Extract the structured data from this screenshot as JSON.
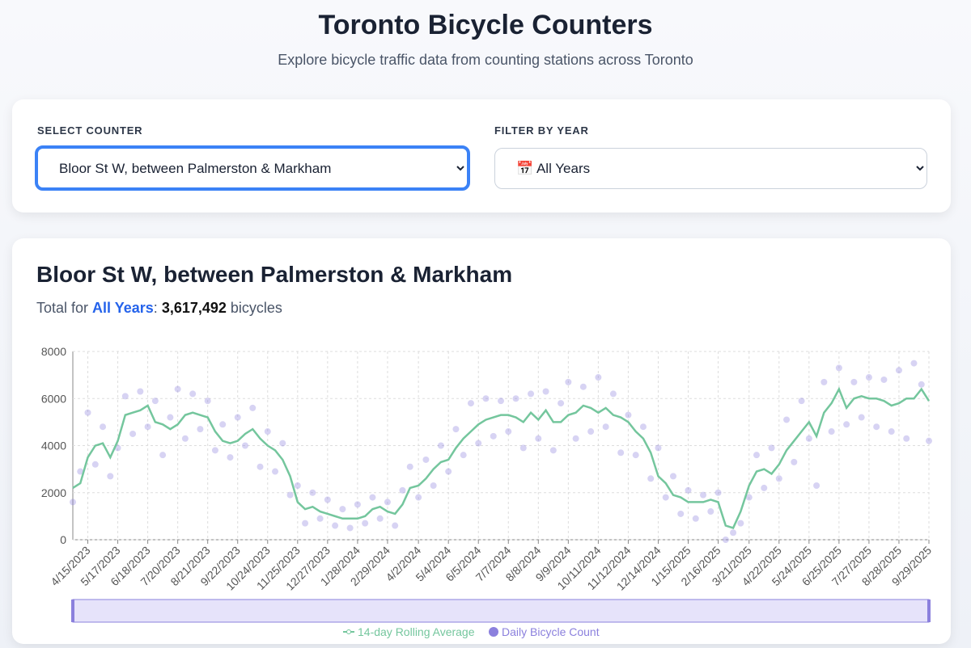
{
  "header": {
    "title": "Toronto Bicycle Counters",
    "subtitle": "Explore bicycle traffic data from counting stations across Toronto"
  },
  "controls": {
    "counter_label": "SELECT COUNTER",
    "counter_value": "Bloor St W, between Palmerston & Markham",
    "year_label": "FILTER BY YEAR",
    "year_value": "📅 All Years"
  },
  "summary": {
    "title": "Bloor St W, between Palmerston & Markham",
    "prefix": "Total for",
    "year": "All Years",
    "separator": ":",
    "count": "3,617,492",
    "suffix": "bicycles"
  },
  "chart_data": {
    "type": "line",
    "grid": true,
    "legend": "bottom",
    "x": [
      "2023-03-30",
      "2023-04-07",
      "2023-04-15",
      "2023-04-23",
      "2023-05-01",
      "2023-05-09",
      "2023-05-17",
      "2023-05-25",
      "2023-06-02",
      "2023-06-10",
      "2023-06-18",
      "2023-06-26",
      "2023-07-04",
      "2023-07-12",
      "2023-07-20",
      "2023-07-28",
      "2023-08-05",
      "2023-08-13",
      "2023-08-21",
      "2023-08-29",
      "2023-09-06",
      "2023-09-14",
      "2023-09-22",
      "2023-09-30",
      "2023-10-08",
      "2023-10-16",
      "2023-10-24",
      "2023-11-01",
      "2023-11-09",
      "2023-11-17",
      "2023-11-25",
      "2023-12-03",
      "2023-12-11",
      "2023-12-19",
      "2023-12-27",
      "2024-01-04",
      "2024-01-12",
      "2024-01-20",
      "2024-01-28",
      "2024-02-05",
      "2024-02-13",
      "2024-02-21",
      "2024-02-29",
      "2024-03-08",
      "2024-03-16",
      "2024-03-24",
      "2024-04-02",
      "2024-04-10",
      "2024-04-18",
      "2024-04-26",
      "2024-05-04",
      "2024-05-12",
      "2024-05-20",
      "2024-05-28",
      "2024-06-05",
      "2024-06-13",
      "2024-06-21",
      "2024-06-29",
      "2024-07-07",
      "2024-07-15",
      "2024-07-23",
      "2024-07-31",
      "2024-08-08",
      "2024-08-16",
      "2024-08-24",
      "2024-09-01",
      "2024-09-09",
      "2024-09-17",
      "2024-09-25",
      "2024-10-03",
      "2024-10-11",
      "2024-10-19",
      "2024-10-27",
      "2024-11-04",
      "2024-11-12",
      "2024-11-20",
      "2024-11-28",
      "2024-12-06",
      "2024-12-14",
      "2024-12-22",
      "2024-12-30",
      "2025-01-07",
      "2025-01-15",
      "2025-01-23",
      "2025-01-31",
      "2025-02-08",
      "2025-02-16",
      "2025-02-24",
      "2025-03-04",
      "2025-03-12",
      "2025-03-21",
      "2025-03-29",
      "2025-04-06",
      "2025-04-14",
      "2025-04-22",
      "2025-04-30",
      "2025-05-08",
      "2025-05-16",
      "2025-05-24",
      "2025-06-01",
      "2025-06-09",
      "2025-06-17",
      "2025-06-25",
      "2025-07-03",
      "2025-07-11",
      "2025-07-19",
      "2025-07-27",
      "2025-08-04",
      "2025-08-12",
      "2025-08-20",
      "2025-08-28",
      "2025-09-05",
      "2025-09-13",
      "2025-09-21",
      "2025-09-29"
    ],
    "series": [
      {
        "name": "14-day Rolling Average",
        "color": "#74c69d",
        "values": [
          2200,
          2400,
          3500,
          4000,
          4100,
          3500,
          4200,
          5300,
          5400,
          5500,
          5700,
          5000,
          4900,
          4700,
          4900,
          5300,
          5400,
          5300,
          5200,
          4600,
          4200,
          4100,
          4200,
          4500,
          4700,
          4300,
          4000,
          3800,
          3400,
          2700,
          1600,
          1300,
          1400,
          1200,
          1100,
          1000,
          900,
          900,
          900,
          1000,
          1300,
          1400,
          1200,
          1100,
          1500,
          2200,
          2300,
          2600,
          3000,
          3300,
          3400,
          3900,
          4300,
          4600,
          4900,
          5100,
          5200,
          5300,
          5300,
          5200,
          5000,
          5400,
          5100,
          5500,
          5000,
          5000,
          5300,
          5400,
          5700,
          5600,
          5400,
          5600,
          5300,
          5200,
          5000,
          4600,
          4300,
          3700,
          2700,
          2400,
          1900,
          1800,
          1600,
          1600,
          1600,
          1700,
          1600,
          600,
          500,
          1200,
          2300,
          2900,
          3000,
          2800,
          3200,
          3800,
          4200,
          4600,
          5000,
          4400,
          5400,
          5800,
          6400,
          5600,
          6000,
          6100,
          6000,
          6000,
          5900,
          5700,
          5800,
          6000,
          6000,
          6400,
          5900
        ]
      },
      {
        "name": "Daily Bicycle Count",
        "color": "#8b80dd",
        "values": [
          1600,
          2900,
          5400,
          3200,
          4800,
          2700,
          3900,
          6100,
          4500,
          6300,
          4800,
          5900,
          3600,
          5200,
          6400,
          4300,
          6200,
          4700,
          5900,
          3800,
          4900,
          3500,
          5200,
          4000,
          5600,
          3100,
          4600,
          2900,
          4100,
          1900,
          2300,
          700,
          2000,
          900,
          1700,
          600,
          1300,
          500,
          1500,
          700,
          1800,
          900,
          1600,
          600,
          2100,
          3100,
          1800,
          3400,
          2300,
          4000,
          2900,
          4700,
          3600,
          5800,
          4100,
          6000,
          4400,
          5900,
          4600,
          6000,
          3900,
          6200,
          4300,
          6300,
          3800,
          5800,
          6700,
          4300,
          6500,
          4600,
          6900,
          4800,
          6200,
          3700,
          5300,
          3600,
          4800,
          2600,
          3900,
          1800,
          2700,
          1100,
          2100,
          900,
          1900,
          1200,
          2000,
          0,
          300,
          700,
          1800,
          3600,
          2200,
          3900,
          2600,
          5100,
          3300,
          5900,
          4300,
          2300,
          6700,
          4600,
          7300,
          4900,
          6700,
          5200,
          6900,
          4800,
          6800,
          4600,
          7200,
          4300,
          7500,
          6600,
          4200
        ]
      }
    ],
    "xlim": [
      "2023-03-30",
      "2025-09-29"
    ],
    "xticks": [
      {
        "value": "2023-04-15",
        "label": "4/15/2023"
      },
      {
        "value": "2023-05-17",
        "label": "5/17/2023"
      },
      {
        "value": "2023-06-18",
        "label": "6/18/2023"
      },
      {
        "value": "2023-07-20",
        "label": "7/20/2023"
      },
      {
        "value": "2023-08-21",
        "label": "8/21/2023"
      },
      {
        "value": "2023-09-22",
        "label": "9/22/2023"
      },
      {
        "value": "2023-10-24",
        "label": "10/24/2023"
      },
      {
        "value": "2023-11-25",
        "label": "11/25/2023"
      },
      {
        "value": "2023-12-27",
        "label": "12/27/2023"
      },
      {
        "value": "2024-01-28",
        "label": "1/28/2024"
      },
      {
        "value": "2024-02-29",
        "label": "2/29/2024"
      },
      {
        "value": "2024-04-02",
        "label": "4/2/2024"
      },
      {
        "value": "2024-05-04",
        "label": "5/4/2024"
      },
      {
        "value": "2024-06-05",
        "label": "6/5/2024"
      },
      {
        "value": "2024-07-07",
        "label": "7/7/2024"
      },
      {
        "value": "2024-08-08",
        "label": "8/8/2024"
      },
      {
        "value": "2024-09-09",
        "label": "9/9/2024"
      },
      {
        "value": "2024-10-11",
        "label": "10/11/2024"
      },
      {
        "value": "2024-11-12",
        "label": "11/12/2024"
      },
      {
        "value": "2024-12-14",
        "label": "12/14/2024"
      },
      {
        "value": "2025-01-15",
        "label": "1/15/2025"
      },
      {
        "value": "2025-02-16",
        "label": "2/16/2025"
      },
      {
        "value": "2025-03-21",
        "label": "3/21/2025"
      },
      {
        "value": "2025-04-22",
        "label": "4/22/2025"
      },
      {
        "value": "2025-05-24",
        "label": "5/24/2025"
      },
      {
        "value": "2025-06-25",
        "label": "6/25/2025"
      },
      {
        "value": "2025-07-27",
        "label": "7/27/2025"
      },
      {
        "value": "2025-08-28",
        "label": "8/28/2025"
      },
      {
        "value": "2025-09-29",
        "label": "9/29/2025"
      }
    ],
    "ylim": [
      0,
      8000
    ],
    "yticks": [
      0,
      2000,
      4000,
      6000,
      8000
    ]
  }
}
